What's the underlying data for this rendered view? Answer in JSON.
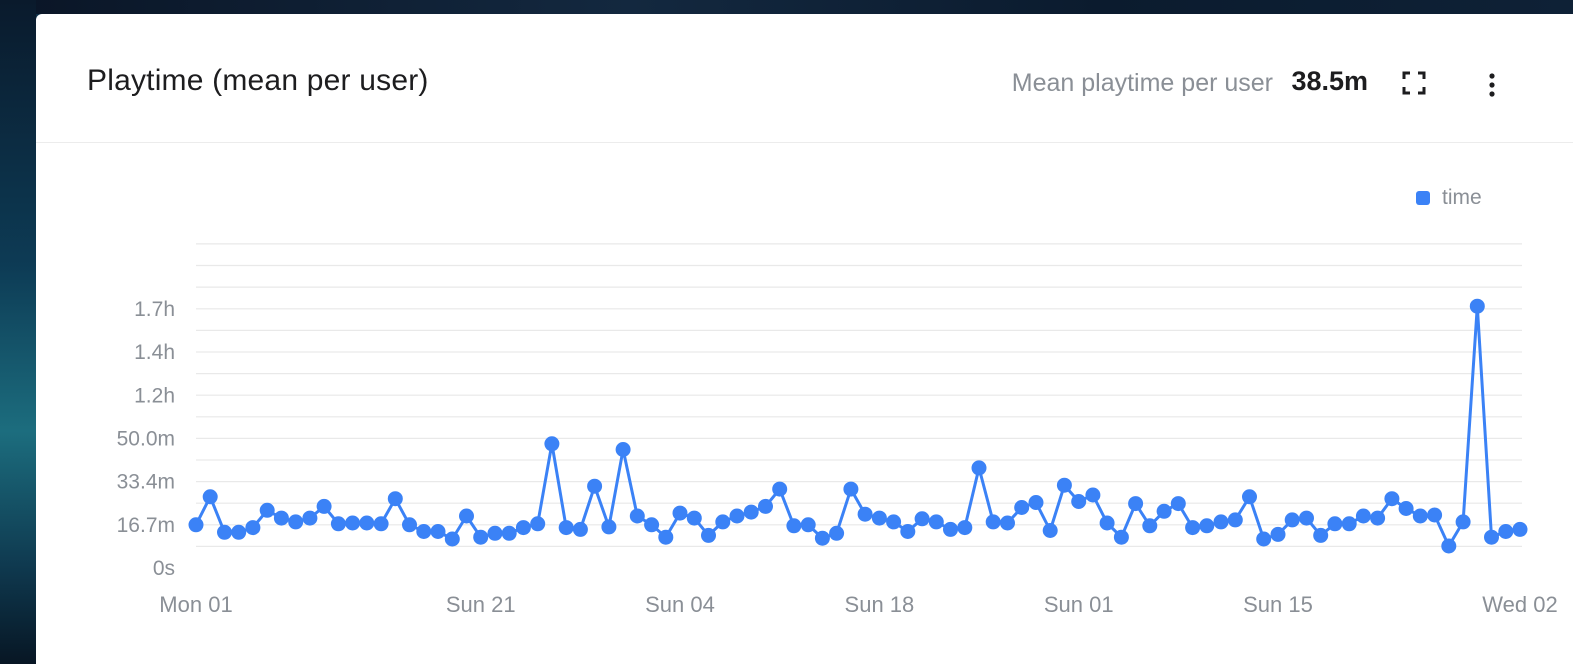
{
  "card": {
    "title": "Playtime (mean per user)",
    "metric_label": "Mean playtime per user",
    "metric_value": "38.5m",
    "expand_icon": "expand-icon",
    "more_icon": "more-vertical-icon"
  },
  "colors": {
    "series": "#3b82f6",
    "grid": "#e9e9e9",
    "axis_text": "#8a8f96"
  },
  "chart_data": {
    "type": "line",
    "title": "Playtime (mean per user)",
    "legend": {
      "position": "top-right",
      "entries": [
        "time"
      ]
    },
    "grid": true,
    "y_unit": "minutes",
    "ylim": [
      0,
      126
    ],
    "y_ticks": [
      {
        "label": "0s",
        "value": 0
      },
      {
        "label": "16.7m",
        "value": 16.7
      },
      {
        "label": "33.4m",
        "value": 33.4
      },
      {
        "label": "50.0m",
        "value": 50.0
      },
      {
        "label": "1.2h",
        "value": 66.7
      },
      {
        "label": "1.4h",
        "value": 83.4
      },
      {
        "label": "1.7h",
        "value": 100.1
      }
    ],
    "x_ticks": [
      {
        "label": "Mon 01",
        "index": 0
      },
      {
        "label": "Sun 21",
        "index": 20
      },
      {
        "label": "Sun 04",
        "index": 34
      },
      {
        "label": "Sun 18",
        "index": 48
      },
      {
        "label": "Sun 01",
        "index": 62
      },
      {
        "label": "Sun 15",
        "index": 76
      },
      {
        "label": "Wed 02",
        "index": 93
      }
    ],
    "series": [
      {
        "name": "time",
        "values": [
          16.7,
          27.5,
          13.8,
          13.8,
          15.6,
          22.3,
          19.3,
          17.8,
          19.3,
          23.8,
          17.1,
          17.4,
          17.4,
          17.1,
          26.8,
          16.7,
          14.1,
          14.1,
          11.2,
          20.1,
          11.9,
          13.4,
          13.4,
          15.6,
          17.1,
          48.0,
          15.6,
          14.9,
          31.6,
          15.9,
          45.8,
          20.1,
          16.7,
          11.9,
          21.2,
          19.3,
          12.6,
          17.8,
          20.1,
          21.6,
          23.8,
          30.5,
          16.3,
          16.7,
          11.5,
          13.4,
          30.5,
          20.8,
          19.3,
          17.8,
          14.1,
          19.0,
          17.8,
          14.9,
          15.6,
          38.7,
          17.8,
          17.4,
          23.4,
          25.3,
          14.5,
          32.0,
          25.7,
          28.2,
          17.4,
          11.9,
          24.9,
          16.3,
          21.9,
          24.9,
          15.6,
          16.3,
          17.8,
          18.6,
          27.5,
          11.2,
          13.0,
          18.6,
          19.3,
          12.6,
          17.1,
          17.1,
          20.1,
          19.3,
          26.8,
          23.0,
          20.1,
          20.5,
          8.5,
          17.8,
          101.2,
          11.9,
          14.1,
          14.9
        ]
      }
    ]
  }
}
